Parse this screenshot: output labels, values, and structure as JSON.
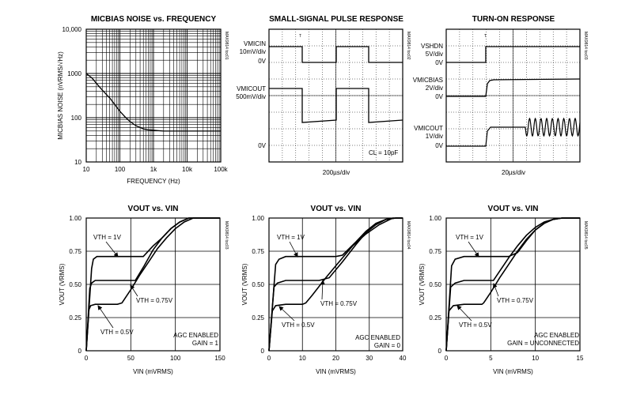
{
  "chart_data": [
    {
      "type": "line",
      "title": "MICBIAS NOISE vs. FREQUENCY",
      "xlabel": "FREQUENCY (Hz)",
      "ylabel": "MICBIAS NOISE (nVRMS/√Hz)",
      "xscale": "log",
      "yscale": "log",
      "xlim": [
        10,
        100000
      ],
      "ylim": [
        10,
        10000
      ],
      "x_tick_labels": [
        "10",
        "100",
        "1k",
        "10k",
        "100k"
      ],
      "y_tick_labels": [
        "10",
        "100",
        "1000",
        "10,000"
      ],
      "code": "MAX9814 toc01",
      "series": [
        {
          "x": [
            10,
            15,
            20,
            30,
            50,
            70,
            100,
            150,
            200,
            300,
            500,
            700,
            1000,
            2000,
            5000,
            10000,
            100000
          ],
          "y": [
            1000,
            780,
            600,
            420,
            280,
            200,
            140,
            100,
            82,
            66,
            56,
            53,
            52,
            50,
            50,
            50,
            50
          ]
        }
      ]
    },
    {
      "type": "line",
      "title": "SMALL-SIGNAL PULSE RESPONSE",
      "xlabel": "200µs/div",
      "code": "MAX9814 toc02",
      "trigger": "T",
      "channels": [
        {
          "label": "VMICIN",
          "scale": "10mV/div",
          "zero": "0V"
        },
        {
          "label": "VMICOUT",
          "scale": "500mV/div",
          "zero": "0V"
        }
      ],
      "annotation": "CL = 10pF"
    },
    {
      "type": "line",
      "title": "TURN-ON RESPONSE",
      "xlabel": "20µs/div",
      "code": "MAX9814 toc03",
      "trigger": "T",
      "channels": [
        {
          "label": "VSHDN",
          "scale": "5V/div",
          "zero": "0V"
        },
        {
          "label": "VMICBIAS",
          "scale": "2V/div",
          "zero": "0V"
        },
        {
          "label": "VMICOUT",
          "scale": "1V/div",
          "zero": "0V"
        }
      ]
    },
    {
      "type": "line",
      "title": "VOUT vs. VIN",
      "xlabel": "VIN (mVRMS)",
      "ylabel": "VOUT (VRMS)",
      "xlim": [
        0,
        150
      ],
      "ylim": [
        0,
        1
      ],
      "x_tick_labels": [
        "0",
        "50",
        "100",
        "150"
      ],
      "y_tick_labels": [
        "0",
        "0.25",
        "0.50",
        "0.75",
        "1.00"
      ],
      "code": "MAX9814 toc03",
      "annotation": [
        "AGC ENABLED",
        "GAIN = 1"
      ],
      "series": [
        {
          "name": "VTH = 1V",
          "x": [
            0,
            6,
            8,
            12,
            20,
            50,
            64,
            75,
            85,
            95,
            105,
            115,
            130,
            150
          ],
          "y": [
            0,
            0.62,
            0.69,
            0.71,
            0.71,
            0.71,
            0.71,
            0.79,
            0.85,
            0.92,
            0.97,
            1.0,
            1.0,
            1.0
          ]
        },
        {
          "name": "VTH = 0.75V",
          "x": [
            0,
            4,
            6,
            10,
            20,
            45,
            55,
            65,
            75,
            85,
            95,
            105,
            115,
            130,
            150
          ],
          "y": [
            0,
            0.47,
            0.51,
            0.53,
            0.53,
            0.53,
            0.53,
            0.64,
            0.76,
            0.85,
            0.92,
            0.97,
            1.0,
            1.0,
            1.0
          ]
        },
        {
          "name": "VTH = 0.5V",
          "x": [
            0,
            3,
            5,
            10,
            20,
            35,
            40,
            50,
            60,
            70,
            80,
            90,
            100,
            110,
            120,
            150
          ],
          "y": [
            0,
            0.31,
            0.34,
            0.35,
            0.35,
            0.35,
            0.36,
            0.46,
            0.57,
            0.67,
            0.77,
            0.85,
            0.92,
            0.97,
            1.0,
            1.0
          ]
        }
      ],
      "labels": [
        "VTH = 1V",
        "VTH = 0.75V",
        "VTH = 0.5V"
      ]
    },
    {
      "type": "line",
      "title": "VOUT vs. VIN",
      "xlabel": "VIN (mVRMS)",
      "ylabel": "VOUT (VRMS)",
      "xlim": [
        0,
        40
      ],
      "ylim": [
        0,
        1
      ],
      "x_tick_labels": [
        "0",
        "10",
        "20",
        "30",
        "40"
      ],
      "y_tick_labels": [
        "0",
        "0.25",
        "0.50",
        "0.75",
        "1.00"
      ],
      "code": "MAX9814 toc04",
      "annotation": [
        "AGC ENABLED",
        "GAIN = 0"
      ],
      "series": [
        {
          "name": "VTH = 1V",
          "x": [
            0,
            2,
            3,
            5,
            10,
            20,
            22,
            26,
            29,
            32,
            35,
            38,
            40
          ],
          "y": [
            0,
            0.65,
            0.69,
            0.71,
            0.71,
            0.71,
            0.72,
            0.82,
            0.9,
            0.96,
            0.99,
            1.0,
            1.0
          ]
        },
        {
          "name": "VTH = 0.75V",
          "x": [
            0,
            1.5,
            2.5,
            5,
            10,
            15,
            18,
            22,
            26,
            29,
            32,
            35,
            38,
            40
          ],
          "y": [
            0,
            0.48,
            0.51,
            0.53,
            0.53,
            0.53,
            0.55,
            0.67,
            0.8,
            0.89,
            0.95,
            0.99,
            1.0,
            1.0
          ]
        },
        {
          "name": "VTH = 0.5V",
          "x": [
            0,
            1,
            2,
            5,
            10,
            11,
            13,
            17,
            21,
            25,
            29,
            33,
            37,
            40
          ],
          "y": [
            0,
            0.3,
            0.34,
            0.35,
            0.35,
            0.36,
            0.42,
            0.55,
            0.67,
            0.79,
            0.88,
            0.95,
            1.0,
            1.0
          ]
        }
      ],
      "labels": [
        "VTH = 1V",
        "VTH = 0.75V",
        "VTH = 0.5V"
      ]
    },
    {
      "type": "line",
      "title": "VOUT vs. VIN",
      "xlabel": "VIN (mVRMS)",
      "ylabel": "VOUT (VRMS)",
      "xlim": [
        0,
        15
      ],
      "ylim": [
        0,
        1
      ],
      "x_tick_labels": [
        "0",
        "5",
        "10",
        "15"
      ],
      "y_tick_labels": [
        "0",
        "0.25",
        "0.50",
        "0.75",
        "1.00"
      ],
      "code": "MAX9814 toc05",
      "annotation": [
        "AGC ENABLED",
        "GAIN = UNCONNECTED"
      ],
      "series": [
        {
          "name": "VTH = 1V",
          "x": [
            0,
            0.6,
            1,
            2,
            5,
            7,
            8,
            9,
            10,
            11,
            12,
            13,
            15
          ],
          "y": [
            0,
            0.64,
            0.69,
            0.71,
            0.71,
            0.71,
            0.74,
            0.83,
            0.91,
            0.96,
            0.99,
            1.0,
            1.0
          ]
        },
        {
          "name": "VTH = 0.75V",
          "x": [
            0,
            0.5,
            1,
            2,
            4,
            5.3,
            6,
            7,
            8,
            9,
            10,
            11,
            12,
            13,
            15
          ],
          "y": [
            0,
            0.48,
            0.51,
            0.53,
            0.53,
            0.53,
            0.6,
            0.7,
            0.79,
            0.87,
            0.93,
            0.97,
            0.99,
            1.0,
            1.0
          ]
        },
        {
          "name": "VTH = 0.5V",
          "x": [
            0,
            0.3,
            0.8,
            2,
            4,
            4.2,
            5,
            6,
            7,
            8,
            9,
            10,
            11,
            12,
            13,
            15
          ],
          "y": [
            0,
            0.3,
            0.34,
            0.35,
            0.35,
            0.36,
            0.44,
            0.55,
            0.65,
            0.75,
            0.84,
            0.91,
            0.96,
            0.99,
            1.0,
            1.0
          ]
        }
      ],
      "labels": [
        "VTH = 1V",
        "VTH = 0.75V",
        "VTH = 0.5V"
      ]
    }
  ]
}
